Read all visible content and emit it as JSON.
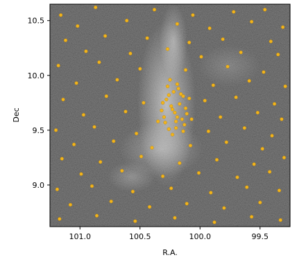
{
  "chart_data": {
    "type": "scatter",
    "xlabel": "R.A.",
    "ylabel": "Dec",
    "x_reversed": true,
    "xlim": [
      101.25,
      99.25
    ],
    "ylim": [
      8.62,
      10.65
    ],
    "grid": false,
    "x_ticks": [
      {
        "value": 101.0,
        "label": "101.0"
      },
      {
        "value": 100.5,
        "label": "100.5"
      },
      {
        "value": 100.0,
        "label": "100.0"
      },
      {
        "value": 99.5,
        "label": "99.5"
      }
    ],
    "y_ticks": [
      {
        "value": 9.0,
        "label": "9.0"
      },
      {
        "value": 9.5,
        "label": "9.5"
      },
      {
        "value": 10.0,
        "label": "10.0"
      },
      {
        "value": 10.5,
        "label": "10.5"
      }
    ],
    "background": "grayscale density map",
    "points": [
      [
        101.16,
        10.55
      ],
      [
        100.87,
        10.62
      ],
      [
        100.38,
        10.6
      ],
      [
        100.06,
        10.55
      ],
      [
        99.72,
        10.58
      ],
      [
        99.46,
        10.6
      ],
      [
        101.02,
        10.45
      ],
      [
        100.61,
        10.5
      ],
      [
        100.19,
        10.47
      ],
      [
        99.92,
        10.43
      ],
      [
        99.57,
        10.49
      ],
      [
        99.31,
        10.44
      ],
      [
        101.12,
        10.32
      ],
      [
        100.79,
        10.36
      ],
      [
        100.44,
        10.34
      ],
      [
        100.09,
        10.3
      ],
      [
        99.81,
        10.33
      ],
      [
        99.41,
        10.31
      ],
      [
        100.95,
        10.22
      ],
      [
        100.58,
        10.2
      ],
      [
        100.27,
        10.24
      ],
      [
        99.99,
        10.17
      ],
      [
        99.66,
        10.21
      ],
      [
        99.35,
        10.19
      ],
      [
        101.18,
        10.09
      ],
      [
        100.84,
        10.12
      ],
      [
        100.5,
        10.06
      ],
      [
        100.12,
        10.05
      ],
      [
        99.77,
        10.08
      ],
      [
        99.47,
        10.03
      ],
      [
        101.03,
        9.93
      ],
      [
        100.69,
        9.96
      ],
      [
        99.89,
        9.91
      ],
      [
        99.59,
        9.95
      ],
      [
        99.29,
        9.9
      ],
      [
        101.14,
        9.78
      ],
      [
        100.78,
        9.81
      ],
      [
        100.47,
        9.75
      ],
      [
        99.96,
        9.77
      ],
      [
        99.7,
        9.8
      ],
      [
        99.38,
        9.74
      ],
      [
        100.97,
        9.64
      ],
      [
        100.62,
        9.67
      ],
      [
        99.83,
        9.62
      ],
      [
        99.52,
        9.66
      ],
      [
        99.32,
        9.6
      ],
      [
        101.2,
        9.5
      ],
      [
        100.88,
        9.53
      ],
      [
        100.53,
        9.47
      ],
      [
        99.93,
        9.49
      ],
      [
        99.63,
        9.52
      ],
      [
        99.4,
        9.45
      ],
      [
        101.05,
        9.37
      ],
      [
        100.72,
        9.4
      ],
      [
        100.4,
        9.34
      ],
      [
        100.08,
        9.36
      ],
      [
        99.78,
        9.39
      ],
      [
        99.48,
        9.33
      ],
      [
        101.15,
        9.24
      ],
      [
        100.83,
        9.21
      ],
      [
        100.49,
        9.26
      ],
      [
        100.17,
        9.2
      ],
      [
        99.86,
        9.23
      ],
      [
        99.55,
        9.19
      ],
      [
        99.3,
        9.25
      ],
      [
        100.99,
        9.1
      ],
      [
        100.65,
        9.13
      ],
      [
        100.31,
        9.08
      ],
      [
        100.01,
        9.11
      ],
      [
        99.69,
        9.07
      ],
      [
        99.42,
        9.12
      ],
      [
        101.19,
        8.96
      ],
      [
        100.9,
        8.99
      ],
      [
        100.56,
        8.94
      ],
      [
        100.24,
        8.97
      ],
      [
        99.91,
        8.93
      ],
      [
        99.61,
        8.98
      ],
      [
        99.34,
        8.95
      ],
      [
        101.08,
        8.82
      ],
      [
        100.74,
        8.85
      ],
      [
        100.42,
        8.8
      ],
      [
        100.11,
        8.83
      ],
      [
        99.8,
        8.79
      ],
      [
        99.5,
        8.84
      ],
      [
        101.17,
        8.69
      ],
      [
        100.86,
        8.72
      ],
      [
        100.54,
        8.67
      ],
      [
        100.21,
        8.7
      ],
      [
        99.88,
        8.66
      ],
      [
        99.57,
        8.71
      ],
      [
        99.33,
        8.68
      ],
      [
        100.25,
        9.96
      ],
      [
        100.19,
        9.92
      ],
      [
        100.22,
        9.85
      ],
      [
        100.14,
        9.81
      ],
      [
        100.28,
        9.78
      ],
      [
        100.17,
        9.74
      ],
      [
        100.23,
        9.69
      ],
      [
        100.11,
        9.65
      ],
      [
        100.3,
        9.62
      ],
      [
        100.2,
        9.58
      ],
      [
        100.13,
        9.55
      ],
      [
        100.26,
        9.51
      ],
      [
        100.18,
        9.88
      ],
      [
        100.24,
        9.72
      ],
      [
        100.15,
        9.6
      ],
      [
        100.29,
        9.57
      ],
      [
        100.21,
        9.66
      ],
      [
        100.09,
        9.79
      ],
      [
        100.27,
        9.9
      ],
      [
        100.12,
        9.7
      ],
      [
        100.2,
        9.52
      ],
      [
        100.32,
        9.68
      ],
      [
        100.16,
        9.83
      ],
      [
        100.23,
        9.46
      ],
      [
        100.35,
        9.58
      ],
      [
        100.07,
        9.6
      ],
      [
        100.26,
        9.82
      ],
      [
        100.19,
        9.62
      ],
      [
        100.31,
        9.75
      ],
      [
        100.14,
        9.49
      ]
    ]
  },
  "colors": {
    "marker": "#f2b41c",
    "marker_edge": "#b98300",
    "axis": "#000000"
  }
}
